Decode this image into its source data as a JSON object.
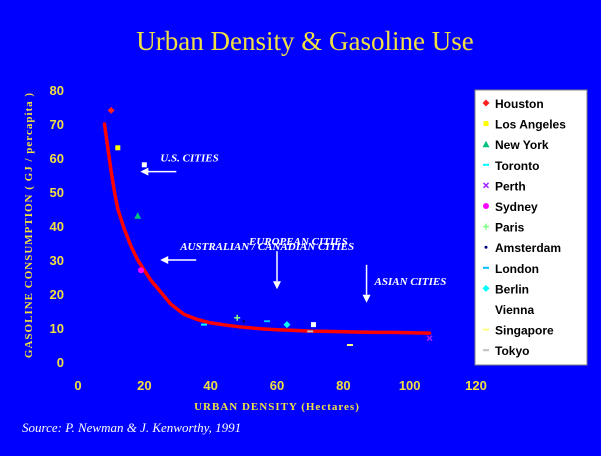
{
  "title": "Urban Density  &  Gasoline Use",
  "source": "Source:  P. Newman & J. Kenworthy, 1991",
  "colors": {
    "background": "#0000ff",
    "text_yellow": "#f0e040",
    "curve": "#ff0000",
    "legend_bg": "#ffffff"
  },
  "chart_data": {
    "type": "scatter",
    "xlabel": "URBAN DENSITY  (Hectares)",
    "ylabel": "GASOLINE  CONSUMPTION  ( GJ / percapita )",
    "xlim": [
      0,
      120
    ],
    "ylim": [
      0,
      80
    ],
    "x_ticks": [
      "0",
      "20",
      "40",
      "60",
      "80",
      "100",
      "120"
    ],
    "y_ticks": [
      "0",
      "10",
      "20",
      "30",
      "40",
      "50",
      "60",
      "70",
      "80"
    ],
    "grid": false,
    "legend_position": "right",
    "series": [
      {
        "name": "Houston",
        "color": "#ff2020",
        "marker": "diamond",
        "x": 10,
        "y": 74
      },
      {
        "name": "Los Angeles",
        "color": "#ffff00",
        "marker": "square",
        "x": 12,
        "y": 63
      },
      {
        "name": "New York",
        "color": "#00c080",
        "marker": "triangle",
        "x": 18,
        "y": 43
      },
      {
        "name": "Toronto",
        "color": "#00ffff",
        "marker": "dash",
        "x": 38,
        "y": 11
      },
      {
        "name": "Perth",
        "color": "#a020ff",
        "marker": "x",
        "x": 106,
        "y": 7
      },
      {
        "name": "Sydney",
        "color": "#ff00ff",
        "marker": "circle",
        "x": 19,
        "y": 27
      },
      {
        "name": "Paris",
        "color": "#80ff80",
        "marker": "plus",
        "x": 48,
        "y": 13
      },
      {
        "name": "Amsterdam",
        "color": "#000080",
        "marker": "dot",
        "x": 50,
        "y": 12
      },
      {
        "name": "London",
        "color": "#00c0ff",
        "marker": "dash",
        "x": 57,
        "y": 12
      },
      {
        "name": "Berlin",
        "color": "#00ffff",
        "marker": "diamond",
        "x": 63,
        "y": 11
      },
      {
        "name": "Vienna",
        "color": "#ffffff",
        "marker": "square",
        "x": 71,
        "y": 11
      },
      {
        "name": "Singapore",
        "color": "#ffff80",
        "marker": "dash",
        "x": 82,
        "y": 5
      },
      {
        "name": "Tokyo",
        "color": "#c0c0c0",
        "marker": "dash",
        "x": 70,
        "y": 9
      }
    ],
    "us_cities_square": {
      "x": 20,
      "y": 58
    },
    "trend_curve": {
      "name": "",
      "color": "#ff0000",
      "x": [
        8,
        9,
        10,
        11,
        12,
        14,
        16,
        18,
        20,
        22,
        25,
        28,
        32,
        36,
        40,
        45,
        50,
        55,
        60,
        65,
        70,
        75,
        80,
        85,
        90,
        95,
        100,
        106
      ],
      "y": [
        70,
        63,
        56,
        50,
        45,
        39,
        34,
        30,
        27,
        24,
        20.5,
        17,
        14,
        12.5,
        11.5,
        10.8,
        10.2,
        9.8,
        9.5,
        9.3,
        9.1,
        9.0,
        8.9,
        8.8,
        8.7,
        8.7,
        8.6,
        8.5
      ]
    },
    "annotations": [
      {
        "text": "U.S. CITIES",
        "arrow": "left",
        "x": 20,
        "y": 56
      },
      {
        "text": "AUSTRALIAN / CANADIAN CITIES",
        "arrow": "left",
        "x": 26,
        "y": 30
      },
      {
        "text": "EUROPEAN CITIES",
        "arrow": "down",
        "x": 60,
        "y": 22
      },
      {
        "text": "ASIAN CITIES",
        "arrow": "down",
        "x": 87,
        "y": 18
      }
    ]
  }
}
